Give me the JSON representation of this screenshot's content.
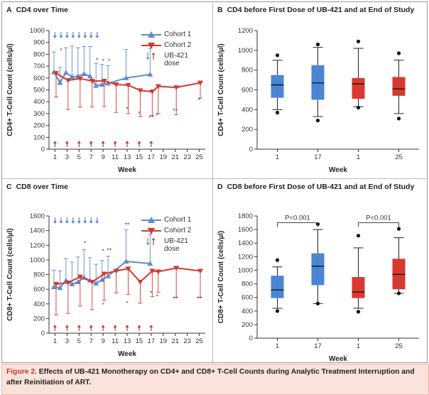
{
  "colors": {
    "blue": "#5b8bd0",
    "red": "#d6372b",
    "grid": "#bbbbbb",
    "axis": "#333333",
    "box_blue": "#4a86d4",
    "box_red": "#d83a2f"
  },
  "caption": {
    "label": "Figure 2.",
    "text": "Effects of UB-421 Monotherapy on CD4+ and CD8+ T-Cell Counts during Analytic Treatment Interruption and after Reinitiation of ART."
  },
  "legend": {
    "cohort1": "Cohort 1",
    "cohort2": "Cohort 2",
    "dose_line1": "UB-421",
    "dose_line2": "dose"
  },
  "chart_data": [
    {
      "panel": "A",
      "title": "CD4 over Time",
      "type": "line",
      "xlabel": "Week",
      "ylabel": "CD4+ T-Cell Count (cells/µl)",
      "xlim": [
        0,
        26
      ],
      "ylim": [
        0,
        1000
      ],
      "xticks": [
        1,
        3,
        5,
        7,
        9,
        11,
        13,
        15,
        17,
        19,
        21,
        23,
        25
      ],
      "yticks": [
        0,
        100,
        200,
        300,
        400,
        500,
        600,
        700,
        800,
        900,
        1000
      ],
      "dose_weeks_cohort1": [
        1,
        2,
        3,
        4,
        5,
        6,
        7,
        8
      ],
      "dose_weeks_cohort2": [
        1,
        3,
        5,
        7,
        9,
        11,
        13,
        15,
        17
      ],
      "series": [
        {
          "name": "Cohort 1",
          "color": "blue",
          "marker": "triangle-up",
          "x": [
            1,
            2,
            3,
            4,
            5,
            6,
            7,
            8,
            9,
            10,
            13,
            17
          ],
          "y": [
            650,
            560,
            645,
            610,
            615,
            635,
            615,
            535,
            545,
            555,
            600,
            630
          ],
          "err": [
            170,
            130,
            210,
            260,
            240,
            230,
            250,
            190,
            170,
            150,
            240,
            220
          ]
        },
        {
          "name": "Cohort 2",
          "color": "red",
          "marker": "triangle-down",
          "x": [
            1,
            3,
            5,
            7,
            9,
            11,
            13,
            15,
            17,
            18,
            21,
            25
          ],
          "y": [
            640,
            580,
            595,
            575,
            575,
            545,
            540,
            495,
            485,
            530,
            520,
            560
          ],
          "err": [
            200,
            245,
            240,
            220,
            215,
            235,
            240,
            220,
            200,
            230,
            230,
            130
          ]
        }
      ],
      "annotations": [
        {
          "text": "*",
          "x": 2,
          "y": 815
        },
        {
          "text": "*",
          "x": 8,
          "y": 735
        },
        {
          "text": "*",
          "x": 9,
          "y": 725
        },
        {
          "text": "*",
          "x": 10,
          "y": 725
        },
        {
          "text": "*",
          "x": 13,
          "y": 320
        },
        {
          "text": "*",
          "x": 15,
          "y": 280
        },
        {
          "text": "**",
          "x": 17,
          "y": 250
        },
        {
          "text": "*",
          "x": 18,
          "y": 265
        },
        {
          "text": "**",
          "x": 21,
          "y": 305
        },
        {
          "text": "*",
          "x": 25,
          "y": 395
        }
      ]
    },
    {
      "panel": "B",
      "title": "CD4 before First Dose of UB-421 and at End of Study",
      "type": "box",
      "xlabel": "Week",
      "ylabel": "CD4+ T-Cell Count (cells/µl)",
      "ylim": [
        0,
        1200
      ],
      "yticks": [
        0,
        200,
        400,
        600,
        800,
        1000,
        1200
      ],
      "categories": [
        "1",
        "17",
        "1",
        "25"
      ],
      "series": [
        {
          "name": "Cohort 1",
          "color": "box_blue",
          "boxes": [
            {
              "week": "1",
              "whisker_low": 400,
              "q1": 520,
              "median": 650,
              "q3": 750,
              "whisker_high": 900,
              "outliers": [
                370,
                950
              ]
            },
            {
              "week": "17",
              "whisker_low": 330,
              "q1": 500,
              "median": 670,
              "q3": 850,
              "whisker_high": 1030,
              "outliers": [
                290,
                1060
              ]
            }
          ]
        },
        {
          "name": "Cohort 2",
          "color": "box_red",
          "boxes": [
            {
              "week": "1",
              "whisker_low": 430,
              "q1": 510,
              "median": 660,
              "q3": 720,
              "whisker_high": 1020,
              "outliers": [
                420,
                1090
              ]
            },
            {
              "week": "25",
              "whisker_low": 360,
              "q1": 540,
              "median": 610,
              "q3": 730,
              "whisker_high": 900,
              "outliers": [
                310,
                970
              ]
            }
          ]
        }
      ]
    },
    {
      "panel": "C",
      "title": "CD8 over Time",
      "type": "line",
      "xlabel": "Week",
      "ylabel": "CD8+ T-Cell Count (cells/µl)",
      "xlim": [
        0,
        26
      ],
      "ylim": [
        0,
        1600
      ],
      "xticks": [
        1,
        3,
        5,
        7,
        9,
        11,
        13,
        15,
        17,
        19,
        21,
        23,
        25
      ],
      "yticks": [
        0,
        200,
        400,
        600,
        800,
        1000,
        1200,
        1400,
        1600
      ],
      "dose_weeks_cohort1": [
        1,
        2,
        3,
        4,
        5,
        6,
        7,
        8
      ],
      "dose_weeks_cohort2": [
        1,
        3,
        5,
        7,
        9,
        11,
        13,
        15,
        17
      ],
      "series": [
        {
          "name": "Cohort 1",
          "color": "blue",
          "marker": "triangle-up",
          "x": [
            1,
            2,
            3,
            4,
            5,
            6,
            7,
            8,
            9,
            10,
            13,
            17
          ],
          "y": [
            630,
            620,
            720,
            670,
            700,
            760,
            720,
            680,
            730,
            780,
            980,
            950
          ],
          "err": [
            230,
            230,
            300,
            300,
            340,
            380,
            310,
            260,
            260,
            270,
            430,
            400
          ]
        },
        {
          "name": "Cohort 2",
          "color": "red",
          "marker": "triangle-down",
          "x": [
            1,
            3,
            5,
            7,
            9,
            11,
            13,
            15,
            17,
            18,
            21,
            25
          ],
          "y": [
            670,
            690,
            770,
            700,
            810,
            850,
            880,
            700,
            850,
            840,
            890,
            850
          ],
          "err": [
            420,
            420,
            400,
            380,
            360,
            300,
            350,
            290,
            350,
            280,
            400,
            360
          ]
        }
      ],
      "annotations": [
        {
          "text": "*",
          "x": 6,
          "y": 1200
        },
        {
          "text": "*",
          "x": 9,
          "y": 1090
        },
        {
          "text": "**",
          "x": 10,
          "y": 1100
        },
        {
          "text": "**",
          "x": 13,
          "y": 1450
        },
        {
          "text": "***",
          "x": 17,
          "y": 1380
        },
        {
          "text": "*",
          "x": 9,
          "y": 360
        },
        {
          "text": "*",
          "x": 13,
          "y": 380
        },
        {
          "text": "*",
          "x": 17,
          "y": 520
        },
        {
          "text": "*",
          "x": 18,
          "y": 470
        },
        {
          "text": "**",
          "x": 21,
          "y": 440
        },
        {
          "text": "**",
          "x": 25,
          "y": 440
        }
      ]
    },
    {
      "panel": "D",
      "title": "CD8 before First Dose of UB-421 and at End of Study",
      "type": "box",
      "xlabel": "Week",
      "ylabel": "CD8+ T-Cell Count (cells/µl)",
      "ylim": [
        0,
        1800
      ],
      "yticks": [
        0,
        200,
        400,
        600,
        800,
        1000,
        1200,
        1400,
        1600,
        1800
      ],
      "categories": [
        "1",
        "17",
        "1",
        "25"
      ],
      "significance": [
        "P<0.001",
        "P<0.001"
      ],
      "series": [
        {
          "name": "Cohort 1",
          "color": "box_blue",
          "boxes": [
            {
              "week": "1",
              "whisker_low": 440,
              "q1": 590,
              "median": 710,
              "q3": 920,
              "whisker_high": 1050,
              "outliers": [
                400,
                1150
              ]
            },
            {
              "week": "17",
              "whisker_low": 510,
              "q1": 780,
              "median": 1060,
              "q3": 1250,
              "whisker_high": 1600,
              "outliers": [
                510,
                1680
              ]
            }
          ]
        },
        {
          "name": "Cohort 2",
          "color": "box_red",
          "boxes": [
            {
              "week": "1",
              "whisker_low": 440,
              "q1": 590,
              "median": 680,
              "q3": 900,
              "whisker_high": 1330,
              "outliers": [
                390,
                1510
              ]
            },
            {
              "week": "25",
              "whisker_low": 660,
              "q1": 720,
              "median": 940,
              "q3": 1170,
              "whisker_high": 1480,
              "outliers": [
                660,
                1610
              ]
            }
          ]
        }
      ]
    }
  ]
}
